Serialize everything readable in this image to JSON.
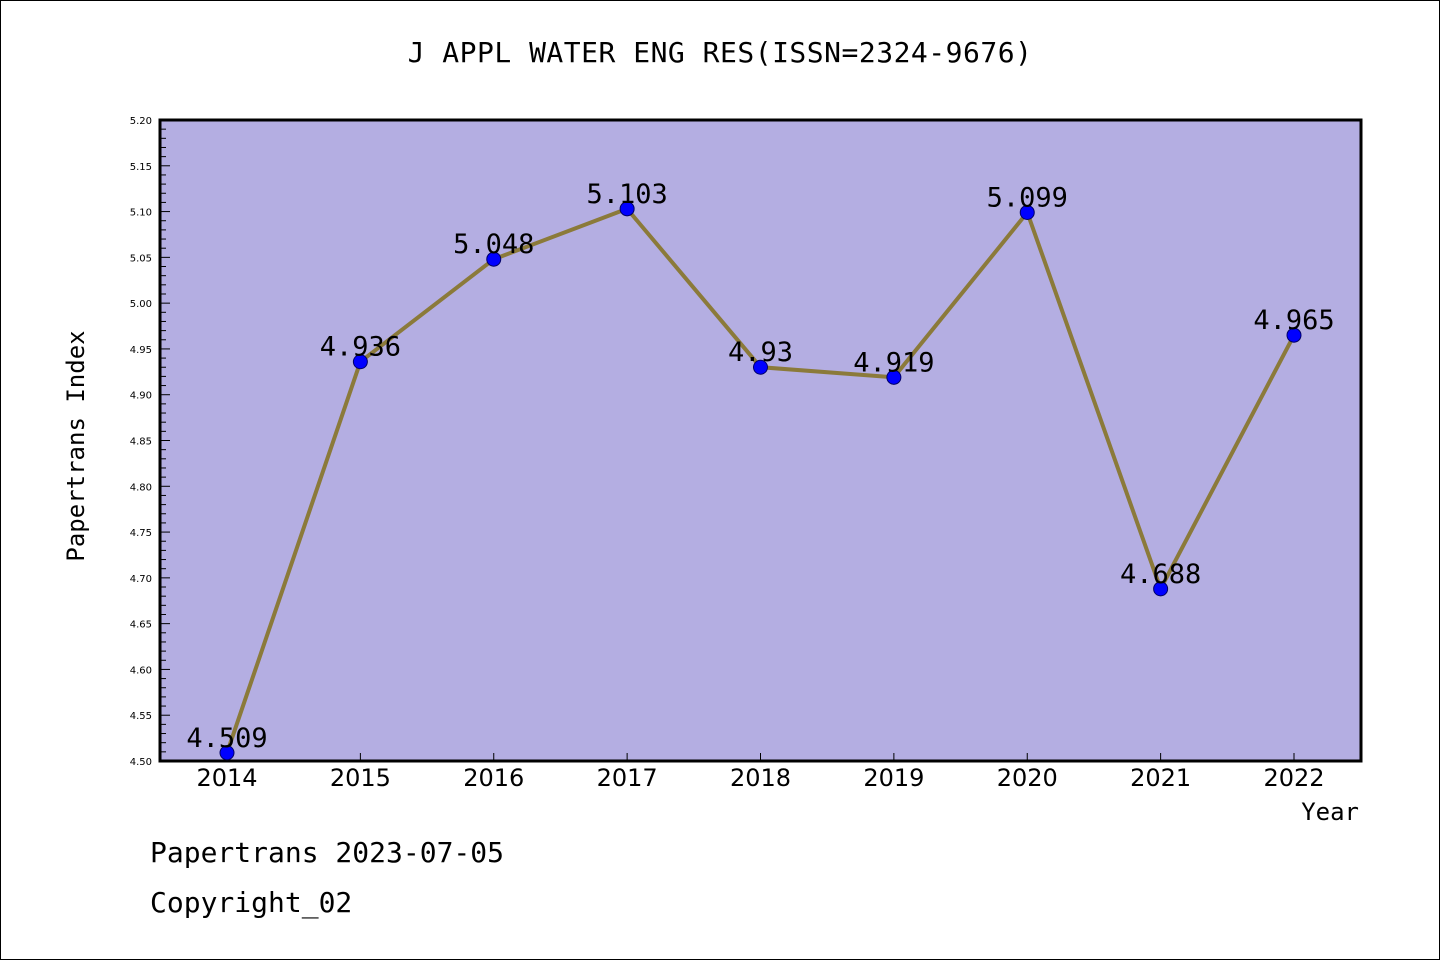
{
  "header": {
    "title": "J APPL WATER ENG RES(ISSN=2324-9676)"
  },
  "footer": {
    "date_line": "Papertrans 2023-07-05",
    "copyright_line": "Copyright_02"
  },
  "colors": {
    "plot_background": "#b4aee2",
    "line": "#8b7a3a",
    "marker": "#0000ff",
    "marker_stroke": "#000066"
  },
  "chart_data": {
    "type": "line",
    "title": "J APPL WATER ENG RES(ISSN=2324-9676)",
    "xlabel": "Year",
    "ylabel": "Papertrans Index",
    "categories": [
      "2014",
      "2015",
      "2016",
      "2017",
      "2018",
      "2019",
      "2020",
      "2021",
      "2022"
    ],
    "values": [
      4.509,
      4.936,
      5.048,
      5.103,
      4.93,
      4.919,
      5.099,
      4.688,
      4.965
    ],
    "data_labels": [
      "4.509",
      "4.936",
      "5.048",
      "5.103",
      "4.93",
      "4.919",
      "5.099",
      "4.688",
      "4.965"
    ],
    "ylim": [
      4.5,
      5.2
    ],
    "yticks": [
      "4.50",
      "4.55",
      "4.60",
      "4.65",
      "4.70",
      "4.75",
      "4.80",
      "4.85",
      "4.90",
      "4.95",
      "5.00",
      "5.05",
      "5.10",
      "5.15",
      "5.20"
    ],
    "grid": false,
    "legend": "none"
  }
}
